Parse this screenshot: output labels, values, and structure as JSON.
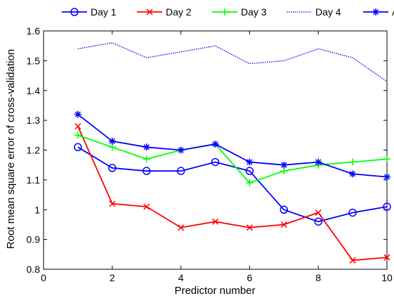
{
  "chart_data": {
    "type": "line",
    "xlabel": "Predictor number",
    "ylabel": "Root mean square error of cross-validation",
    "xlim": [
      0,
      10
    ],
    "ylim": [
      0.8,
      1.6
    ],
    "xticks": [
      "0",
      "2",
      "4",
      "6",
      "8",
      "10"
    ],
    "yticks": [
      "0.8",
      "0.9",
      "1",
      "1.1",
      "1.2",
      "1.3",
      "1.4",
      "1.5",
      "1.6"
    ],
    "legend_position": "top-outside",
    "x": [
      1,
      2,
      3,
      4,
      5,
      6,
      7,
      8,
      9,
      10
    ],
    "series": [
      {
        "name": "Day 1",
        "color": "#0000ff",
        "marker": "circle",
        "line": "solid",
        "values": [
          1.21,
          1.14,
          1.13,
          1.13,
          1.16,
          1.13,
          1.0,
          0.96,
          0.99,
          1.01
        ]
      },
      {
        "name": "Day 2",
        "color": "#ff0000",
        "marker": "x",
        "line": "solid",
        "values": [
          1.28,
          1.02,
          1.01,
          0.94,
          0.96,
          0.94,
          0.95,
          0.99,
          0.83,
          0.84
        ]
      },
      {
        "name": "Day 3",
        "color": "#00ff00",
        "marker": "plus",
        "line": "solid",
        "values": [
          1.25,
          1.21,
          1.17,
          1.2,
          1.22,
          1.09,
          1.13,
          1.15,
          1.16,
          1.17
        ]
      },
      {
        "name": "Day 4",
        "color": "#0000ff",
        "marker": "none",
        "line": "dotted",
        "values": [
          1.54,
          1.56,
          1.51,
          1.53,
          1.55,
          1.49,
          1.5,
          1.54,
          1.51,
          1.43
        ]
      },
      {
        "name": "All",
        "color": "#0000ff",
        "marker": "star",
        "line": "solid",
        "values": [
          1.32,
          1.23,
          1.21,
          1.2,
          1.22,
          1.16,
          1.15,
          1.16,
          1.12,
          1.11
        ]
      }
    ]
  }
}
